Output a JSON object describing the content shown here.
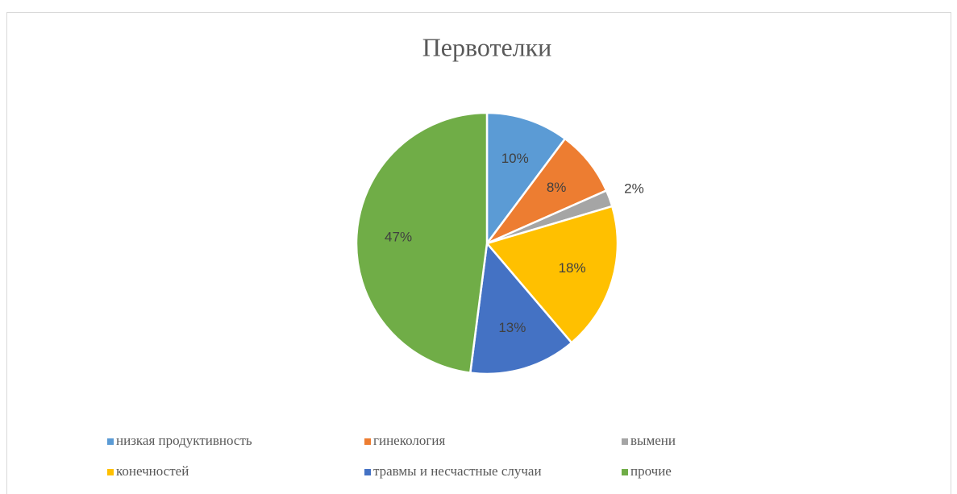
{
  "chart_data": {
    "type": "pie",
    "title": "Первотелки",
    "categories": [
      "низкая продуктивность",
      "гинекология",
      "вымени",
      "конечностей",
      "травмы и несчастные случаи",
      "прочие"
    ],
    "values": [
      10,
      8,
      2,
      18,
      13,
      47
    ],
    "value_labels": [
      "10%",
      "8%",
      "2%",
      "18%",
      "13%",
      "47%"
    ],
    "colors": [
      "#5b9bd5",
      "#ed7d31",
      "#a5a5a5",
      "#ffc000",
      "#4472c4",
      "#70ad47"
    ],
    "legend": "bottom"
  }
}
